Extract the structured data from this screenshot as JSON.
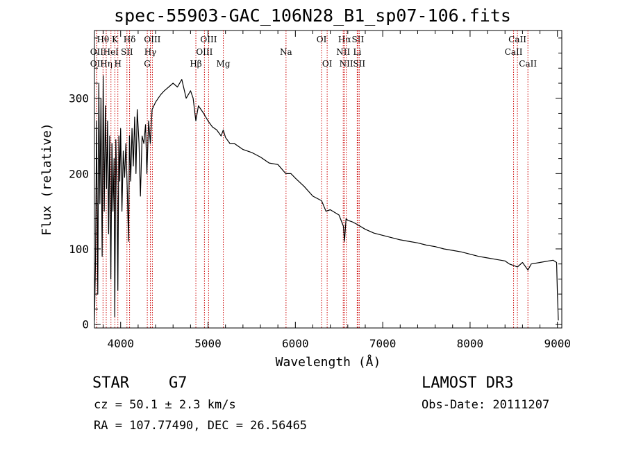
{
  "chart_data": {
    "type": "line",
    "title": "spec-55903-GAC_106N28_B1_sp07-106.fits",
    "xlabel": "Wavelength (Å)",
    "ylabel": "Flux (relative)",
    "xlim": [
      3700,
      9050
    ],
    "ylim": [
      -5,
      390
    ],
    "x_ticks": [
      4000,
      5000,
      6000,
      7000,
      8000,
      9000
    ],
    "y_ticks": [
      0,
      100,
      200,
      300
    ],
    "x_tick_labels": [
      "4000",
      "5000",
      "6000",
      "7000",
      "8000",
      "9000"
    ],
    "y_tick_labels": [
      "0",
      "100",
      "200",
      "300"
    ],
    "series": [
      {
        "name": "flux",
        "x": [
          3700,
          3712,
          3725,
          3738,
          3750,
          3762,
          3775,
          3788,
          3800,
          3812,
          3825,
          3838,
          3850,
          3862,
          3875,
          3888,
          3900,
          3912,
          3925,
          3933,
          3945,
          3960,
          3968,
          3980,
          3990,
          4000,
          4015,
          4030,
          4045,
          4060,
          4075,
          4090,
          4101,
          4115,
          4130,
          4145,
          4160,
          4175,
          4190,
          4210,
          4226,
          4245,
          4265,
          4285,
          4300,
          4320,
          4340,
          4360,
          4380,
          4400,
          4430,
          4460,
          4500,
          4550,
          4600,
          4650,
          4700,
          4750,
          4800,
          4830,
          4861,
          4890,
          4920,
          4950,
          5000,
          5050,
          5100,
          5150,
          5175,
          5200,
          5250,
          5300,
          5400,
          5500,
          5600,
          5700,
          5800,
          5890,
          5950,
          6000,
          6100,
          6200,
          6300,
          6350,
          6400,
          6500,
          6550,
          6563,
          6580,
          6600,
          6650,
          6700,
          6800,
          6900,
          7000,
          7100,
          7200,
          7300,
          7400,
          7500,
          7600,
          7700,
          7800,
          7900,
          8000,
          8100,
          8200,
          8300,
          8400,
          8450,
          8498,
          8542,
          8600,
          8662,
          8700,
          8800,
          8900,
          8950,
          8990,
          9000,
          9010
        ],
        "values": [
          5,
          80,
          270,
          40,
          320,
          160,
          300,
          90,
          330,
          150,
          290,
          180,
          270,
          120,
          250,
          60,
          240,
          150,
          220,
          10,
          245,
          160,
          45,
          250,
          190,
          260,
          150,
          230,
          195,
          240,
          180,
          110,
          250,
          190,
          260,
          210,
          275,
          200,
          285,
          240,
          170,
          250,
          240,
          265,
          200,
          270,
          240,
          285,
          290,
          295,
          300,
          305,
          310,
          315,
          320,
          315,
          325,
          300,
          310,
          300,
          270,
          290,
          285,
          280,
          270,
          262,
          258,
          250,
          258,
          248,
          240,
          240,
          232,
          228,
          222,
          214,
          212,
          200,
          200,
          194,
          183,
          170,
          164,
          150,
          152,
          145,
          130,
          110,
          140,
          138,
          136,
          133,
          126,
          121,
          118,
          115,
          112,
          110,
          108,
          105,
          103,
          100,
          98,
          96,
          93,
          90,
          88,
          86,
          84,
          80,
          78,
          76,
          82,
          72,
          80,
          82,
          84,
          85,
          82,
          40,
          5
        ]
      }
    ],
    "lines": [
      {
        "label": "Hθ",
        "x": 3798,
        "row": 0
      },
      {
        "label": "OII",
        "x": 3727,
        "row": 1
      },
      {
        "label": "OII",
        "x": 3727,
        "row": 2
      },
      {
        "label": "Hη",
        "x": 3835,
        "row": 2
      },
      {
        "label": "HeI",
        "x": 3889,
        "row": 1
      },
      {
        "label": "K",
        "x": 3934,
        "row": 0
      },
      {
        "label": "H",
        "x": 3968,
        "row": 2
      },
      {
        "label": "SII",
        "x": 4072,
        "row": 1
      },
      {
        "label": "Hδ",
        "x": 4102,
        "row": 0
      },
      {
        "label": "OIII",
        "x": 4363,
        "row": 0
      },
      {
        "label": "Hγ",
        "x": 4340,
        "row": 1
      },
      {
        "label": "G",
        "x": 4305,
        "row": 2
      },
      {
        "label": "Hβ",
        "x": 4861,
        "row": 2
      },
      {
        "label": "OIII",
        "x": 5007,
        "row": 0
      },
      {
        "label": "OIII",
        "x": 4959,
        "row": 1
      },
      {
        "label": "Mg",
        "x": 5175,
        "row": 2
      },
      {
        "label": "Na",
        "x": 5893,
        "row": 1
      },
      {
        "label": "OI",
        "x": 6300,
        "row": 0
      },
      {
        "label": "OI",
        "x": 6364,
        "row": 2
      },
      {
        "label": "Hα",
        "x": 6563,
        "row": 0
      },
      {
        "label": "NII",
        "x": 6548,
        "row": 1
      },
      {
        "label": "NII",
        "x": 6583,
        "row": 2
      },
      {
        "label": "SII",
        "x": 6716,
        "row": 0
      },
      {
        "label": "Li",
        "x": 6708,
        "row": 1
      },
      {
        "label": "SII",
        "x": 6731,
        "row": 2
      },
      {
        "label": "CaII",
        "x": 8542,
        "row": 0
      },
      {
        "label": "CaII",
        "x": 8498,
        "row": 1
      },
      {
        "label": "CaII",
        "x": 8662,
        "row": 2
      }
    ]
  },
  "info": {
    "class_label": "STAR",
    "subclass_label": "G7",
    "cz_text": "cz = 50.1 ± 2.3 km/s",
    "radec_text": "RA = 107.77490, DEC =  26.56465",
    "survey_text": "LAMOST DR3",
    "obsdate_text": "Obs-Date: 20111207"
  },
  "colors": {
    "line_marker": "#cc0000",
    "spectrum": "#000000"
  }
}
